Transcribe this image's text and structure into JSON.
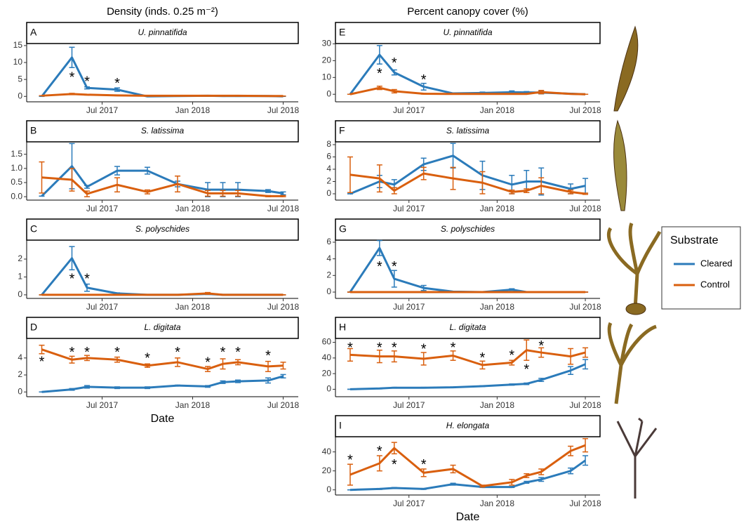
{
  "legend": {
    "title": "Substrate"
  },
  "chart_data": [
    {
      "type": "line",
      "column_title": "Density (inds. 0.25 m⁻²)",
      "label": "A",
      "title": "U. pinnatifida",
      "x": [
        "2017-03",
        "2017-05",
        "2017-06",
        "2017-08",
        "2017-10",
        "2017-12",
        "2018-02",
        "2018-03",
        "2018-04",
        "2018-06",
        "2018-07"
      ],
      "xlim": [
        "2017-02",
        "2018-08"
      ],
      "xticks": [
        {
          "value": "2017-07",
          "label": "Jul 2017"
        },
        {
          "value": "2018-01",
          "label": "Jan 2018"
        },
        {
          "value": "2018-07",
          "label": "Jul 2018"
        }
      ],
      "ylim": [
        -1.6,
        15.6
      ],
      "yticks": [
        0,
        5,
        10,
        15
      ],
      "series": [
        {
          "name": "Cleared",
          "color": "#2b7bba",
          "values": [
            0,
            11.5,
            2.5,
            2,
            0,
            0.1,
            0.2,
            0.1,
            0.1,
            0.1,
            0
          ],
          "errors": [
            0,
            3,
            0.3,
            0.5,
            0,
            0.1,
            0.1,
            0.1,
            0.1,
            0.1,
            0
          ]
        },
        {
          "name": "Control",
          "color": "#d95f0e",
          "values": [
            0.2,
            0.7,
            0.5,
            0.3,
            0.2,
            0.2,
            0.2,
            0.2,
            0.2,
            0.1,
            0.1
          ],
          "errors": [
            0,
            0.2,
            0.1,
            0.1,
            0,
            0,
            0,
            0,
            0,
            0,
            0
          ]
        }
      ],
      "annotations": [
        {
          "text": "*",
          "x": "2017-05",
          "y": 6.2
        },
        {
          "text": "*",
          "x": "2017-06",
          "y": 5
        },
        {
          "text": "*",
          "x": "2017-08",
          "y": 4.5
        }
      ]
    },
    {
      "type": "line",
      "label": "B",
      "title": "S. latissima",
      "x": [
        "2017-03",
        "2017-05",
        "2017-06",
        "2017-08",
        "2017-10",
        "2017-12",
        "2018-02",
        "2018-03",
        "2018-04",
        "2018-06",
        "2018-07"
      ],
      "xlim": [
        "2017-02",
        "2018-08"
      ],
      "xticks": [
        {
          "value": "2017-07",
          "label": "Jul 2017"
        },
        {
          "value": "2018-01",
          "label": "Jan 2018"
        },
        {
          "value": "2018-07",
          "label": "Jul 2018"
        }
      ],
      "ylim": [
        -0.12,
        1.94
      ],
      "yticks": [
        {
          "value": 0,
          "label": "0.0"
        },
        0.5,
        {
          "value": 1,
          "label": "1.0"
        },
        1.5
      ],
      "series": [
        {
          "color": "#2b7bba",
          "values": [
            0.02,
            1.08,
            0.35,
            0.92,
            0.92,
            0.45,
            0.25,
            0.25,
            0.25,
            0.2,
            0.12
          ],
          "errors": [
            0,
            0.8,
            0.05,
            0.15,
            0.12,
            0.1,
            0.25,
            0.25,
            0.25,
            0.05,
            0.05
          ]
        },
        {
          "color": "#d95f0e",
          "values": [
            0.68,
            0.6,
            0.1,
            0.42,
            0.17,
            0.45,
            0.12,
            0.12,
            0.12,
            0.02,
            0.02
          ],
          "errors": [
            0.55,
            0.4,
            0.1,
            0.25,
            0.07,
            0.28,
            0.1,
            0.1,
            0.1,
            0.02,
            0.02
          ]
        }
      ],
      "annotations": []
    },
    {
      "type": "line",
      "label": "C",
      "title": "S. polyschides",
      "x": [
        "2017-03",
        "2017-05",
        "2017-06",
        "2017-08",
        "2017-10",
        "2017-12",
        "2018-02",
        "2018-03",
        "2018-04",
        "2018-06",
        "2018-07"
      ],
      "xlim": [
        "2017-02",
        "2018-08"
      ],
      "xticks": [
        {
          "value": "2017-07",
          "label": "Jul 2017"
        },
        {
          "value": "2018-01",
          "label": "Jan 2018"
        },
        {
          "value": "2018-07",
          "label": "Jul 2018"
        }
      ],
      "ylim": [
        -0.2,
        3.06
      ],
      "yticks": [
        0,
        1,
        2
      ],
      "series": [
        {
          "color": "#2b7bba",
          "values": [
            0,
            2.05,
            0.4,
            0.08,
            0,
            0,
            0.05,
            0,
            0,
            0,
            0
          ],
          "errors": [
            0,
            0.65,
            0.2,
            0.03,
            0,
            0,
            0.03,
            0,
            0,
            0,
            0
          ]
        },
        {
          "color": "#d95f0e",
          "values": [
            0,
            0,
            0,
            0,
            0,
            0,
            0.08,
            0,
            0,
            0,
            0
          ],
          "errors": [
            0,
            0,
            0,
            0,
            0,
            0,
            0.05,
            0,
            0,
            0,
            0
          ]
        }
      ],
      "annotations": [
        {
          "text": "*",
          "x": "2017-05",
          "y": 1
        },
        {
          "text": "*",
          "x": "2017-06",
          "y": 1
        }
      ]
    },
    {
      "type": "line",
      "label": "D",
      "title": "L. digitata",
      "x_label": "Date",
      "x": [
        "2017-03",
        "2017-05",
        "2017-06",
        "2017-08",
        "2017-10",
        "2017-12",
        "2018-02",
        "2018-03",
        "2018-04",
        "2018-06",
        "2018-07"
      ],
      "xlim": [
        "2017-02",
        "2018-08"
      ],
      "xticks": [
        {
          "value": "2017-07",
          "label": "Jul 2017"
        },
        {
          "value": "2018-01",
          "label": "Jan 2018"
        },
        {
          "value": "2018-07",
          "label": "Jul 2018"
        }
      ],
      "ylim": [
        -0.56,
        6.3
      ],
      "yticks": [
        0,
        2,
        4
      ],
      "series": [
        {
          "color": "#2b7bba",
          "values": [
            0,
            0.3,
            0.6,
            0.5,
            0.5,
            0.75,
            0.65,
            1.15,
            1.25,
            1.35,
            1.85
          ],
          "errors": [
            0,
            0.1,
            0.15,
            0.1,
            0.1,
            0.05,
            0.1,
            0.15,
            0.15,
            0.3,
            0.2
          ]
        },
        {
          "color": "#d95f0e",
          "values": [
            5,
            3.8,
            4,
            3.8,
            3.1,
            3.5,
            2.7,
            3.3,
            3.5,
            3,
            3.1
          ],
          "errors": [
            0.5,
            0.4,
            0.3,
            0.3,
            0.2,
            0.5,
            0.3,
            0.6,
            0.3,
            0.6,
            0.4
          ]
        }
      ],
      "annotations": [
        {
          "text": "*",
          "x": "2017-03",
          "y": 3.8
        },
        {
          "text": "*",
          "x": "2017-05",
          "y": 4.9
        },
        {
          "text": "*",
          "x": "2017-06",
          "y": 4.9
        },
        {
          "text": "*",
          "x": "2017-08",
          "y": 4.9
        },
        {
          "text": "*",
          "x": "2017-10",
          "y": 4.2
        },
        {
          "text": "*",
          "x": "2017-12",
          "y": 4.9
        },
        {
          "text": "*",
          "x": "2018-02",
          "y": 3.7
        },
        {
          "text": "*",
          "x": "2018-03",
          "y": 4.9
        },
        {
          "text": "*",
          "x": "2018-04",
          "y": 4.9
        },
        {
          "text": "*",
          "x": "2018-06",
          "y": 4.5
        }
      ]
    },
    {
      "type": "line",
      "column_title": "Percent canopy cover (%)",
      "label": "E",
      "title": "U. pinnatifida",
      "x": [
        "2017-03",
        "2017-05",
        "2017-06",
        "2017-08",
        "2017-10",
        "2017-12",
        "2018-02",
        "2018-03",
        "2018-04",
        "2018-06",
        "2018-07"
      ],
      "xlim": [
        "2017-02",
        "2018-08"
      ],
      "xticks": [
        {
          "value": "2017-07",
          "label": "Jul 2017"
        },
        {
          "value": "2018-01",
          "label": "Jan 2018"
        },
        {
          "value": "2018-07",
          "label": "Jul 2018"
        }
      ],
      "ylim": [
        -4.5,
        30.2
      ],
      "yticks": [
        0,
        10,
        20,
        30
      ],
      "series": [
        {
          "color": "#2b7bba",
          "values": [
            0,
            23.5,
            13,
            4.5,
            0.5,
            0.8,
            1.2,
            1.1,
            1,
            0.3,
            0
          ],
          "errors": [
            0,
            5.5,
            1.5,
            2,
            0.3,
            0.5,
            0.8,
            0.5,
            0.8,
            0.2,
            0
          ]
        },
        {
          "color": "#d95f0e",
          "values": [
            0,
            3.8,
            1.8,
            0.3,
            0.2,
            0.2,
            0.2,
            0.2,
            1.3,
            0.2,
            0
          ],
          "errors": [
            0,
            1,
            1,
            0.2,
            0,
            0,
            0,
            0,
            1,
            0,
            0
          ]
        }
      ],
      "annotations": [
        {
          "text": "*",
          "x": "2017-05",
          "y": 13.6
        },
        {
          "text": "*",
          "x": "2017-06",
          "y": 19.8
        },
        {
          "text": "*",
          "x": "2017-08",
          "y": 9.9
        }
      ]
    },
    {
      "type": "line",
      "label": "F",
      "title": "S. latissima",
      "x": [
        "2017-03",
        "2017-05",
        "2017-06",
        "2017-08",
        "2017-10",
        "2017-12",
        "2018-02",
        "2018-03",
        "2018-04",
        "2018-06",
        "2018-07"
      ],
      "xlim": [
        "2017-02",
        "2018-08"
      ],
      "xticks": [
        {
          "value": "2017-07",
          "label": "Jul 2017"
        },
        {
          "value": "2018-01",
          "label": "Jan 2018"
        },
        {
          "value": "2018-07",
          "label": "Jul 2018"
        }
      ],
      "ylim": [
        -1.03,
        8.46
      ],
      "yticks": [
        0,
        2,
        4,
        6,
        8
      ],
      "series": [
        {
          "color": "#2b7bba",
          "values": [
            0,
            2,
            1.5,
            4.8,
            6.2,
            3,
            1.5,
            2,
            2,
            0.8,
            1.3
          ],
          "errors": [
            0,
            1,
            0.8,
            1,
            2,
            2.3,
            1.5,
            1.8,
            2.2,
            0.8,
            1.2
          ]
        },
        {
          "color": "#d95f0e",
          "values": [
            3.1,
            2.5,
            0.5,
            3.3,
            2.5,
            1.8,
            0.3,
            0.5,
            1.3,
            0.3,
            0
          ],
          "errors": [
            2.9,
            2.2,
            0.5,
            1,
            1.8,
            1.8,
            0.3,
            0.3,
            1.3,
            0.3,
            0.1
          ]
        }
      ],
      "annotations": []
    },
    {
      "type": "line",
      "label": "G",
      "title": "S. polyschides",
      "x": [
        "2017-03",
        "2017-05",
        "2017-06",
        "2017-08",
        "2017-10",
        "2017-12",
        "2018-02",
        "2018-03",
        "2018-04",
        "2018-06",
        "2018-07"
      ],
      "xlim": [
        "2017-02",
        "2018-08"
      ],
      "xticks": [
        {
          "value": "2017-07",
          "label": "Jul 2017"
        },
        {
          "value": "2018-01",
          "label": "Jan 2018"
        },
        {
          "value": "2018-07",
          "label": "Jul 2018"
        }
      ],
      "ylim": [
        -0.76,
        6.25
      ],
      "yticks": [
        0,
        2,
        4,
        6
      ],
      "series": [
        {
          "color": "#2b7bba",
          "values": [
            0,
            5.3,
            1.6,
            0.5,
            0.05,
            0,
            0.3,
            0,
            0,
            0,
            0
          ],
          "errors": [
            0,
            0.9,
            1,
            0.3,
            0.05,
            0,
            0.1,
            0,
            0,
            0,
            0
          ]
        },
        {
          "color": "#d95f0e",
          "values": [
            0,
            0,
            0,
            0,
            0,
            0,
            0,
            0,
            0,
            0,
            0
          ],
          "errors": [
            0,
            0,
            0,
            0,
            0,
            0,
            0,
            0,
            0,
            0,
            0
          ]
        }
      ],
      "annotations": [
        {
          "text": "*",
          "x": "2017-05",
          "y": 3.3
        },
        {
          "text": "*",
          "x": "2017-06",
          "y": 3.3
        }
      ]
    },
    {
      "type": "line",
      "label": "H",
      "title": "L. digitata",
      "x": [
        "2017-03",
        "2017-05",
        "2017-06",
        "2017-08",
        "2017-10",
        "2017-12",
        "2018-02",
        "2018-03",
        "2018-04",
        "2018-06",
        "2018-07"
      ],
      "xlim": [
        "2017-02",
        "2018-08"
      ],
      "xticks": [
        {
          "value": "2017-07",
          "label": "Jul 2017"
        },
        {
          "value": "2018-01",
          "label": "Jan 2018"
        },
        {
          "value": "2018-07",
          "label": "Jul 2018"
        }
      ],
      "ylim": [
        -9.5,
        65
      ],
      "yticks": [
        0,
        20,
        40,
        60
      ],
      "series": [
        {
          "color": "#2b7bba",
          "values": [
            0,
            1,
            2,
            2,
            2.5,
            4,
            6,
            7,
            12,
            24,
            32
          ],
          "errors": [
            0,
            0.5,
            0.5,
            0.5,
            0.5,
            0.5,
            0.8,
            1,
            2,
            5,
            6
          ]
        },
        {
          "color": "#d95f0e",
          "values": [
            44,
            42,
            42,
            39,
            43,
            31,
            34,
            50,
            47,
            42,
            47
          ],
          "errors": [
            8,
            8,
            7,
            8,
            6,
            5,
            3,
            13,
            6,
            10,
            6
          ]
        }
      ],
      "annotations": [
        {
          "text": "*",
          "x": "2017-03",
          "y": 56
        },
        {
          "text": "*",
          "x": "2017-05",
          "y": 56
        },
        {
          "text": "*",
          "x": "2017-06",
          "y": 56
        },
        {
          "text": "*",
          "x": "2017-08",
          "y": 54
        },
        {
          "text": "*",
          "x": "2017-10",
          "y": 56
        },
        {
          "text": "*",
          "x": "2017-12",
          "y": 42.6
        },
        {
          "text": "*",
          "x": "2018-02",
          "y": 46
        },
        {
          "text": "*",
          "x": "2018-03",
          "y": 27.8
        },
        {
          "text": "*",
          "x": "2018-04",
          "y": 58
        }
      ]
    },
    {
      "type": "line",
      "label": "I",
      "title": "H. elongata",
      "x_label": "Date",
      "x": [
        "2017-03",
        "2017-05",
        "2017-06",
        "2017-08",
        "2017-10",
        "2017-12",
        "2018-02",
        "2018-03",
        "2018-04",
        "2018-06",
        "2018-07"
      ],
      "xlim": [
        "2017-02",
        "2018-08"
      ],
      "xticks": [
        {
          "value": "2017-07",
          "label": "Jul 2017"
        },
        {
          "value": "2018-01",
          "label": "Jan 2018"
        },
        {
          "value": "2018-07",
          "label": "Jul 2018"
        }
      ],
      "ylim": [
        -5.4,
        56
      ],
      "yticks": [
        0,
        20,
        40
      ],
      "series": [
        {
          "color": "#2b7bba",
          "values": [
            0,
            1,
            2,
            1,
            6,
            3,
            3,
            8,
            11,
            20,
            31
          ],
          "errors": [
            0,
            0.5,
            0.5,
            0.5,
            1,
            0.5,
            0.5,
            1,
            2,
            3,
            5
          ]
        },
        {
          "color": "#d95f0e",
          "values": [
            16,
            28,
            44,
            18,
            22,
            4,
            8,
            15,
            19,
            41,
            47
          ],
          "errors": [
            11,
            8,
            6,
            4,
            4,
            1,
            3,
            2,
            3,
            5,
            7
          ]
        }
      ],
      "annotations": [
        {
          "text": "*",
          "x": "2017-03",
          "y": 33.8
        },
        {
          "text": "*",
          "x": "2017-05",
          "y": 43
        },
        {
          "text": "*",
          "x": "2017-06",
          "y": 29
        },
        {
          "text": "*",
          "x": "2017-08",
          "y": 29
        }
      ]
    }
  ]
}
